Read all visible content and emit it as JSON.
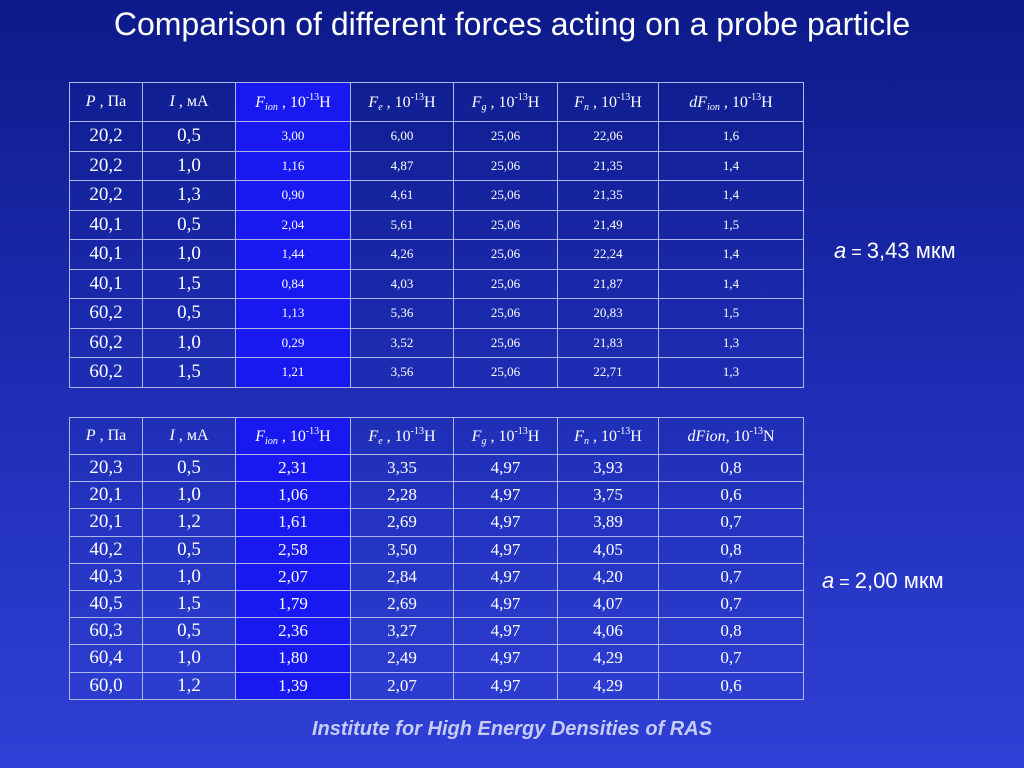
{
  "title": "Comparison of different forces acting on a probe particle",
  "table1": {
    "headers": {
      "p": {
        "sym": "P",
        "unit": " , Па"
      },
      "i": {
        "sym": "I",
        "unit": " , мА"
      },
      "fion": {
        "sym": "F",
        "sub": "ion",
        "unit": " , 10",
        "exp": "-13",
        "tail": "Н"
      },
      "fe": {
        "sym": "F",
        "sub": "e",
        "unit": " , 10",
        "exp": "-13",
        "tail": "Н"
      },
      "fg": {
        "sym": "F",
        "sub": "g",
        "unit": " , 10",
        "exp": "-13",
        "tail": "Н"
      },
      "fn": {
        "sym": "F",
        "sub": "n",
        "unit": " , 10",
        "exp": "-13",
        "tail": "Н"
      },
      "dfion": {
        "sym": "dF",
        "sub": "ion",
        "unit": " ,  10",
        "exp": "-13",
        "tail": "Н"
      }
    },
    "rows": [
      [
        "20,2",
        "0,5",
        "3,00",
        "6,00",
        "25,06",
        "22,06",
        "1,6"
      ],
      [
        "20,2",
        "1,0",
        "1,16",
        "4,87",
        "25,06",
        "21,35",
        "1,4"
      ],
      [
        "20,2",
        "1,3",
        "0,90",
        "4,61",
        "25,06",
        "21,35",
        "1,4"
      ],
      [
        "40,1",
        "0,5",
        "2,04",
        "5,61",
        "25,06",
        "21,49",
        "1,5"
      ],
      [
        "40,1",
        "1,0",
        "1,44",
        "4,26",
        "25,06",
        "22,24",
        "1,4"
      ],
      [
        "40,1",
        "1,5",
        "0,84",
        "4,03",
        "25,06",
        "21,87",
        "1,4"
      ],
      [
        "60,2",
        "0,5",
        "1,13",
        "5,36",
        "25,06",
        "20,83",
        "1,5"
      ],
      [
        "60,2",
        "1,0",
        "0,29",
        "3,52",
        "25,06",
        "21,83",
        "1,3"
      ],
      [
        "60,2",
        "1,5",
        "1,21",
        "3,56",
        "25,06",
        "22,71",
        "1,3"
      ]
    ]
  },
  "radius1": {
    "symbol": "a",
    "eq": "=",
    "value": "3,43 мкм"
  },
  "table2": {
    "headers": {
      "p": {
        "sym": "P",
        "unit": " , Па"
      },
      "i": {
        "sym": "I",
        "unit": " , мА"
      },
      "fion": {
        "sym": "F",
        "sub": "ion",
        "unit": " , 10",
        "exp": "-13",
        "tail": "Н"
      },
      "fe": {
        "sym": "F",
        "sub": "e",
        "unit": " , 10",
        "exp": "-13",
        "tail": "Н"
      },
      "fg": {
        "sym": "F",
        "sub": "g",
        "unit": " , 10",
        "exp": "-13",
        "tail": "Н"
      },
      "fn": {
        "sym": "F",
        "sub": "n",
        "unit": " , 10",
        "exp": "-13",
        "tail": "Н"
      },
      "dfion": {
        "sym": "dFion,",
        "unit": " 10",
        "exp": "-13",
        "tail": "N"
      }
    },
    "rows": [
      [
        "20,3",
        "0,5",
        "2,31",
        "3,35",
        "4,97",
        "3,93",
        "0,8"
      ],
      [
        "20,1",
        "1,0",
        "1,06",
        "2,28",
        "4,97",
        "3,75",
        "0,6"
      ],
      [
        "20,1",
        "1,2",
        "1,61",
        "2,69",
        "4,97",
        "3,89",
        "0,7"
      ],
      [
        "40,2",
        "0,5",
        "2,58",
        "3,50",
        "4,97",
        "4,05",
        "0,8"
      ],
      [
        "40,3",
        "1,0",
        "2,07",
        "2,84",
        "4,97",
        "4,20",
        "0,7"
      ],
      [
        "40,5",
        "1,5",
        "1,79",
        "2,69",
        "4,97",
        "4,07",
        "0,7"
      ],
      [
        "60,3",
        "0,5",
        "2,36",
        "3,27",
        "4,97",
        "4,06",
        "0,8"
      ],
      [
        "60,4",
        "1,0",
        "1,80",
        "2,49",
        "4,97",
        "4,29",
        "0,7"
      ],
      [
        "60,0",
        "1,2",
        "1,39",
        "2,07",
        "4,97",
        "4,29",
        "0,6"
      ]
    ]
  },
  "radius2": {
    "symbol": "a",
    "eq": "=",
    "value": "2,00 мкм"
  },
  "footer": "Institute for High Energy Densities of RAS",
  "colors": {
    "background_top": "#0d1a8a",
    "background_bottom": "#2f40d6",
    "highlight_column": "#1818f0",
    "grid_lines": "#aeb6e8",
    "text": "#ffffff",
    "footer_text": "#c6ccf6"
  }
}
